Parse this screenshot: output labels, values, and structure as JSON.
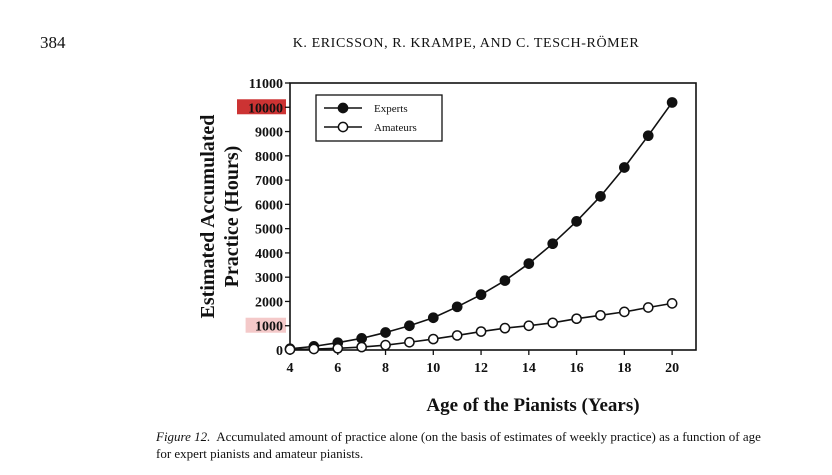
{
  "page": {
    "page_number": "384",
    "running_head": "K. ERICSSON, R. KRAMPE, AND C. TESCH-RÖMER"
  },
  "caption": {
    "label": "Figure 12.",
    "text": "Accumulated amount of practice alone (on the basis of estimates of weekly practice) as a function of age for expert pianists and amateur pianists."
  },
  "colors": {
    "axis": "#111111",
    "highlight_10000": "#cc3333",
    "highlight_1000": "#f4c9c9"
  },
  "chart_data": {
    "type": "line",
    "ylabel_line1": "Estimated Accumulated",
    "ylabel_line2": "Practice (Hours)",
    "xlabel": "Age of the Pianists (Years)",
    "xlim": [
      4,
      21
    ],
    "ylim": [
      0,
      11000
    ],
    "x_ticks": [
      4,
      6,
      8,
      10,
      12,
      14,
      16,
      18,
      20
    ],
    "y_ticks": [
      0,
      1000,
      2000,
      3000,
      4000,
      5000,
      6000,
      7000,
      8000,
      9000,
      10000,
      11000
    ],
    "highlighted_ticks": [
      {
        "value": 10000,
        "color": "#cc3333"
      },
      {
        "value": 1000,
        "color": "#f4c9c9"
      }
    ],
    "legend_position": "top-left",
    "x": [
      4,
      5,
      6,
      7,
      8,
      9,
      10,
      11,
      12,
      13,
      14,
      15,
      16,
      17,
      18,
      19,
      20
    ],
    "series": [
      {
        "name": "Experts",
        "marker": "filled-circle",
        "values": [
          50,
          150,
          300,
          480,
          720,
          1000,
          1330,
          1780,
          2280,
          2860,
          3560,
          4380,
          5300,
          6330,
          7520,
          8830,
          10200
        ]
      },
      {
        "name": "Amateurs",
        "marker": "open-circle",
        "values": [
          20,
          40,
          70,
          120,
          200,
          320,
          450,
          600,
          760,
          900,
          1000,
          1120,
          1290,
          1430,
          1570,
          1750,
          1920
        ]
      }
    ]
  }
}
